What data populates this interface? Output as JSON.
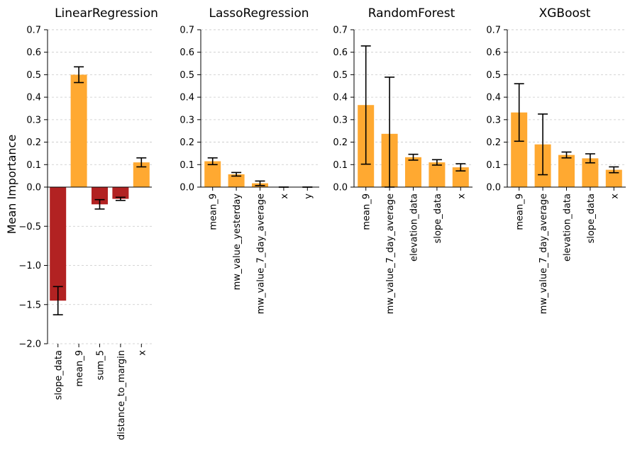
{
  "figure": {
    "ylabel": "Mean Importance",
    "colors": {
      "positive": "#FFA931",
      "negative": "#B22222",
      "error_bar": "#000000",
      "grid": "#c8c8c8"
    }
  },
  "chart_data": [
    {
      "type": "bar",
      "title": "LinearRegression",
      "ylim": [
        -2.0,
        0.7
      ],
      "yticks": [
        -2.0,
        -1.5,
        -1.0,
        -0.5,
        0.0,
        0.1,
        0.2,
        0.3,
        0.4,
        0.5,
        0.6,
        0.7
      ],
      "ytick_labels": [
        "−2.0",
        "−1.5",
        "−1.0",
        "−0.5",
        "0.0",
        "0.1",
        "0.2",
        "0.3",
        "0.4",
        "0.5",
        "0.6",
        "0.7"
      ],
      "y_scale": "piecewise linear: negative range compressed below zero",
      "grid": "horizontal dashed",
      "categories": [
        "slope_data",
        "mean_9",
        "sum_5",
        "distance_to_margin",
        "x"
      ],
      "values": [
        -1.45,
        0.5,
        -0.22,
        -0.15,
        0.11
      ],
      "errors": [
        0.18,
        0.035,
        0.06,
        0.02,
        0.02
      ]
    },
    {
      "type": "bar",
      "title": "LassoRegression",
      "ylim": [
        0.0,
        0.7
      ],
      "yticks": [
        0.0,
        0.1,
        0.2,
        0.3,
        0.4,
        0.5,
        0.6,
        0.7
      ],
      "ytick_labels": [
        "0.0",
        "0.1",
        "0.2",
        "0.3",
        "0.4",
        "0.5",
        "0.6",
        "0.7"
      ],
      "grid": "horizontal dashed",
      "categories": [
        "mean_9",
        "mw_value_yesterday",
        "mw_value_7_day_average",
        "x",
        "y"
      ],
      "values": [
        0.115,
        0.057,
        0.017,
        0.0,
        0.0
      ],
      "errors": [
        0.015,
        0.008,
        0.01,
        0.0,
        0.0
      ]
    },
    {
      "type": "bar",
      "title": "RandomForest",
      "ylim": [
        0.0,
        0.7
      ],
      "yticks": [
        0.0,
        0.1,
        0.2,
        0.3,
        0.4,
        0.5,
        0.6,
        0.7
      ],
      "ytick_labels": [
        "0.0",
        "0.1",
        "0.2",
        "0.3",
        "0.4",
        "0.5",
        "0.6",
        "0.7"
      ],
      "grid": "horizontal dashed",
      "categories": [
        "mean_9",
        "mw_value_7_day_average",
        "elevation_data",
        "slope_data",
        "x"
      ],
      "values": [
        0.365,
        0.237,
        0.133,
        0.11,
        0.088
      ],
      "errors": [
        0.263,
        0.252,
        0.013,
        0.012,
        0.016
      ]
    },
    {
      "type": "bar",
      "title": "XGBoost",
      "ylim": [
        0.0,
        0.7
      ],
      "yticks": [
        0.0,
        0.1,
        0.2,
        0.3,
        0.4,
        0.5,
        0.6,
        0.7
      ],
      "ytick_labels": [
        "0.0",
        "0.1",
        "0.2",
        "0.3",
        "0.4",
        "0.5",
        "0.6",
        "0.7"
      ],
      "grid": "horizontal dashed",
      "categories": [
        "mean_9",
        "mw_value_7_day_average",
        "elevation_data",
        "slope_data",
        "x"
      ],
      "values": [
        0.332,
        0.19,
        0.143,
        0.128,
        0.077
      ],
      "errors": [
        0.128,
        0.135,
        0.013,
        0.02,
        0.013
      ]
    }
  ]
}
